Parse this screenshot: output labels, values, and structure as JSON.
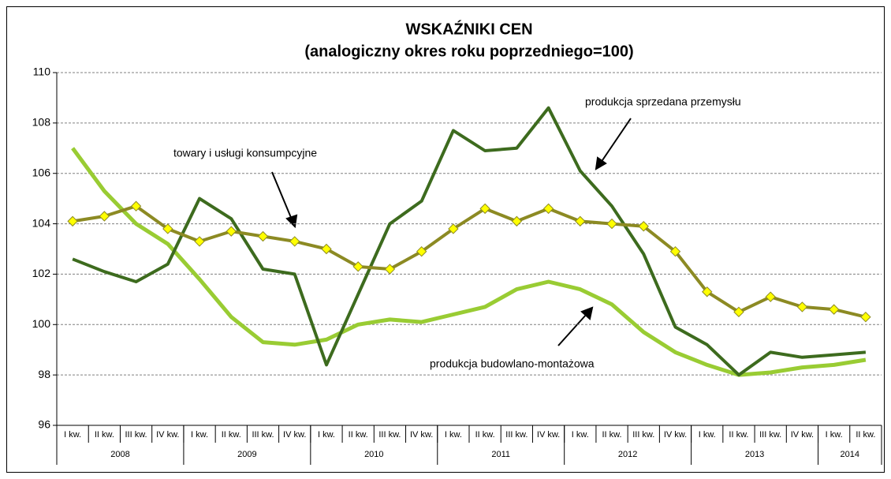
{
  "chart_data": {
    "type": "line",
    "title": "WSKAŹNIKI CEN",
    "subtitle": "(analogiczny okres roku poprzedniego=100)",
    "categories": [
      "I kw.",
      "II kw.",
      "III kw.",
      "IV kw.",
      "I kw.",
      "II kw.",
      "III kw.",
      "IV kw.",
      "I kw.",
      "II kw.",
      "III kw.",
      "IV kw.",
      "I kw.",
      "II kw.",
      "III kw.",
      "IV kw.",
      "I kw.",
      "II kw.",
      "III kw.",
      "IV kw.",
      "I kw.",
      "II kw.",
      "III kw.",
      "IV kw.",
      "I kw.",
      "II kw."
    ],
    "year_groups": [
      {
        "label": "2008",
        "span": 4
      },
      {
        "label": "2009",
        "span": 4
      },
      {
        "label": "2010",
        "span": 4
      },
      {
        "label": "2011",
        "span": 4
      },
      {
        "label": "2012",
        "span": 4
      },
      {
        "label": "2013",
        "span": 4
      },
      {
        "label": "2014",
        "span": 2
      }
    ],
    "ylim": [
      96,
      110
    ],
    "yticks": [
      96,
      98,
      100,
      102,
      104,
      106,
      108,
      110
    ],
    "grid": true,
    "series": [
      {
        "name": "produkcja sprzedana przemysłu",
        "color": "#3d6b1e",
        "values": [
          102.6,
          102.1,
          101.7,
          102.4,
          105.0,
          104.2,
          102.2,
          102.0,
          98.4,
          101.2,
          104.0,
          104.9,
          107.7,
          106.9,
          107.0,
          108.6,
          106.1,
          104.7,
          102.8,
          99.9,
          99.2,
          98.0,
          98.9,
          98.7,
          98.8,
          98.9
        ]
      },
      {
        "name": "towary i usługi konsumpcyjne",
        "color": "#8c8a23",
        "marker": "diamond",
        "marker_color": "#ffff00",
        "values": [
          104.1,
          104.3,
          104.7,
          103.8,
          103.3,
          103.7,
          103.5,
          103.3,
          103.0,
          102.3,
          102.2,
          102.9,
          103.8,
          104.6,
          104.1,
          104.6,
          104.1,
          104.0,
          103.9,
          102.9,
          101.3,
          100.5,
          101.1,
          100.7,
          100.6,
          100.3
        ]
      },
      {
        "name": "produkcja budowlano-montażowa",
        "color": "#99cc33",
        "values": [
          107.0,
          105.3,
          104.0,
          103.2,
          101.8,
          100.3,
          99.3,
          99.2,
          99.4,
          100.0,
          100.2,
          100.1,
          100.4,
          100.7,
          101.4,
          101.7,
          101.4,
          100.8,
          99.7,
          98.9,
          98.4,
          98.0,
          98.1,
          98.3,
          98.4,
          98.6
        ]
      }
    ]
  }
}
